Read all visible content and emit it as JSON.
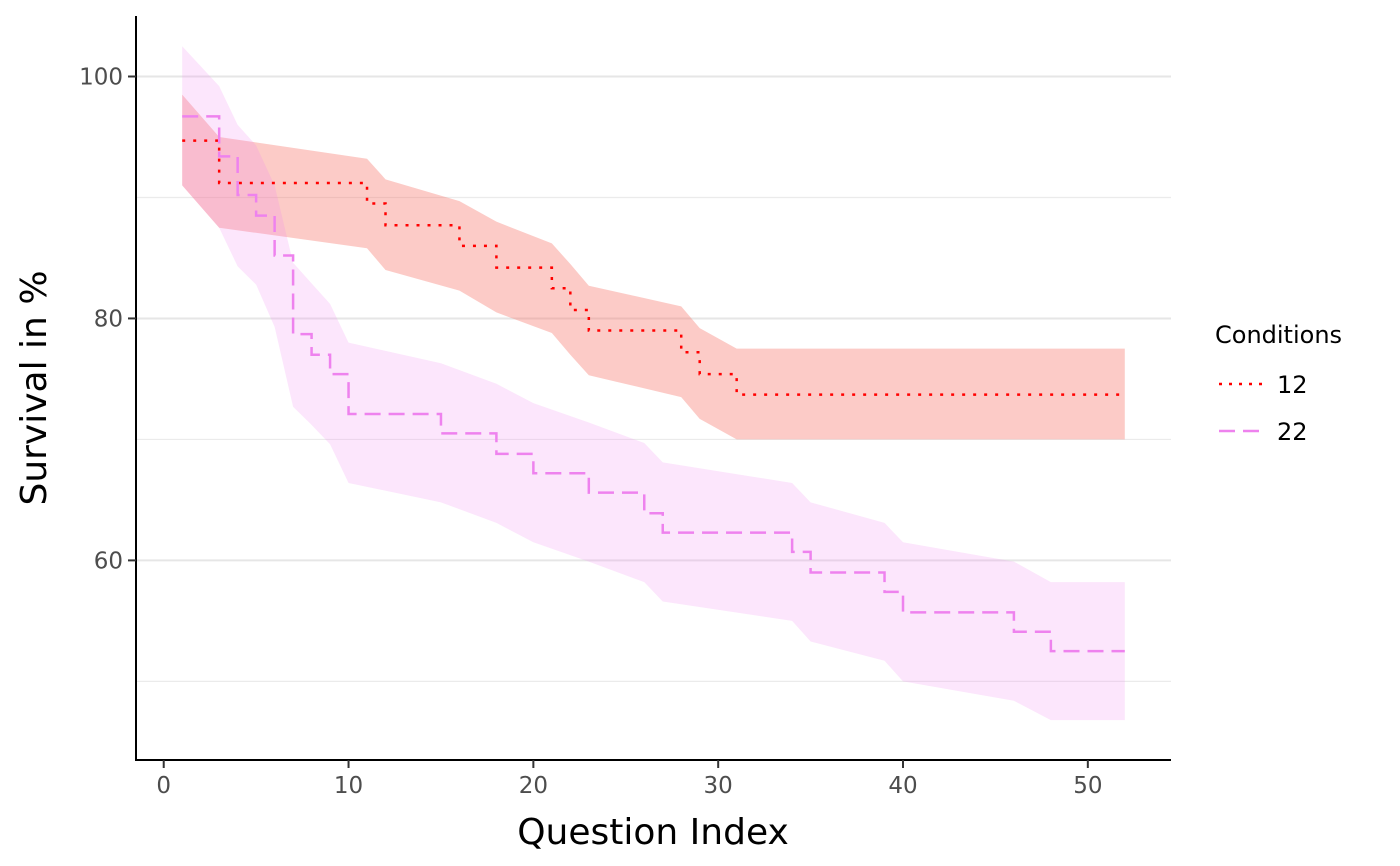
{
  "chart_data": {
    "type": "line",
    "subtype": "step-with-confidence-band",
    "xlabel": "Question Index",
    "ylabel": "Survival in %",
    "xlim": [
      -1.5,
      54.5
    ],
    "ylim": [
      43.5,
      105.0
    ],
    "x_ticks": [
      0,
      10,
      20,
      30,
      40,
      50
    ],
    "y_ticks": [
      60,
      80,
      100
    ],
    "y_minor_grid": [
      50,
      70,
      90
    ],
    "grid": "horizontal",
    "legend": {
      "title": "Conditions",
      "placement": "right"
    },
    "series": [
      {
        "name": "12",
        "color": "#ff0000",
        "band_color": "#f8766d",
        "line_style": "dotted",
        "x": [
          1,
          3,
          11,
          12,
          16,
          18,
          21,
          22,
          23,
          28,
          29,
          31,
          52
        ],
        "y": [
          94.7,
          91.2,
          89.5,
          87.7,
          86.0,
          84.2,
          82.5,
          80.7,
          79.0,
          77.2,
          75.4,
          73.7,
          73.7
        ],
        "lower": [
          91.0,
          87.5,
          85.8,
          84.0,
          82.3,
          80.5,
          78.8,
          77.0,
          75.3,
          73.5,
          71.7,
          70.0,
          70.0
        ],
        "upper": [
          98.5,
          95.0,
          93.2,
          91.5,
          89.7,
          88.0,
          86.2,
          84.5,
          82.7,
          81.0,
          79.2,
          77.5,
          77.5
        ]
      },
      {
        "name": "22",
        "color": "#ee82ee",
        "band_color": "#ee82ee",
        "line_style": "dashed",
        "x": [
          1,
          3,
          4,
          5,
          6,
          7,
          8,
          9,
          10,
          15,
          18,
          20,
          23,
          26,
          27,
          34,
          35,
          39,
          40,
          46,
          48,
          52
        ],
        "y": [
          96.7,
          93.4,
          90.2,
          88.5,
          85.2,
          78.7,
          77.0,
          75.4,
          72.1,
          70.5,
          68.8,
          67.2,
          65.6,
          63.9,
          62.3,
          60.7,
          59.0,
          57.4,
          55.7,
          54.1,
          52.5,
          52.5
        ],
        "lower": [
          91.0,
          87.5,
          84.3,
          82.8,
          79.3,
          72.7,
          71.2,
          69.6,
          66.4,
          64.8,
          63.1,
          61.5,
          59.9,
          58.2,
          56.6,
          55.0,
          53.3,
          51.7,
          50.0,
          48.4,
          46.8,
          46.8
        ],
        "upper": [
          102.5,
          99.2,
          96.0,
          94.3,
          91.0,
          84.6,
          82.9,
          81.2,
          78.0,
          76.3,
          74.6,
          73.0,
          71.4,
          69.7,
          68.1,
          66.4,
          64.8,
          63.1,
          61.5,
          59.9,
          58.2,
          58.2
        ]
      }
    ]
  }
}
